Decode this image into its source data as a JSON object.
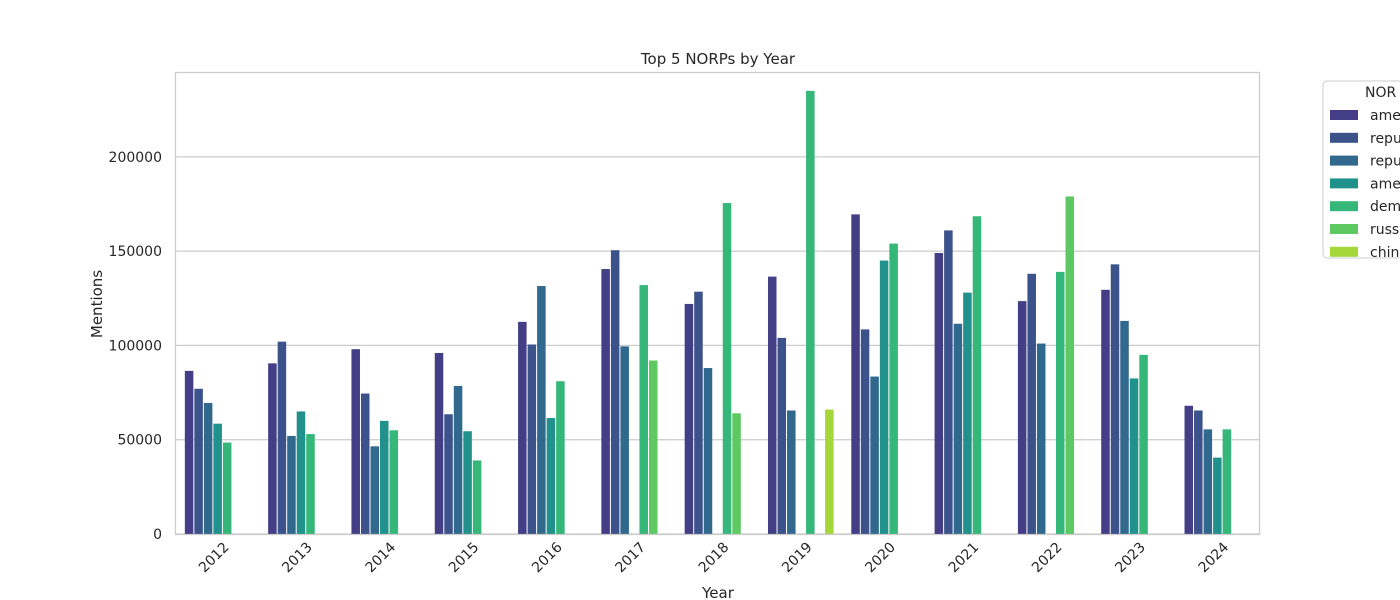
{
  "chart_data": {
    "type": "bar",
    "title": "Top 5 NORPs by Year",
    "xlabel": "Year",
    "ylabel": "Mentions",
    "ylim": [
      0,
      245000
    ],
    "yticks": [
      0,
      50000,
      100000,
      150000,
      200000
    ],
    "ytick_labels": [
      "0",
      "50000",
      "100000",
      "150000",
      "200000"
    ],
    "grid": "y",
    "legend": {
      "title": "NOR",
      "placement": "outside-right"
    },
    "categories": [
      "2012",
      "2013",
      "2014",
      "2015",
      "2016",
      "2017",
      "2018",
      "2019",
      "2020",
      "2021",
      "2022",
      "2023",
      "2024"
    ],
    "series": [
      {
        "name": "ame",
        "color": "#433e85",
        "values": [
          86500,
          90500,
          98000,
          96000,
          112500,
          140500,
          122000,
          136500,
          169500,
          149000,
          123500,
          129500,
          68000
        ]
      },
      {
        "name": "repu",
        "color": "#3b528b",
        "values": [
          77000,
          102000,
          74500,
          63500,
          100500,
          150500,
          128500,
          104000,
          108500,
          161000,
          138000,
          143000,
          65500
        ]
      },
      {
        "name": "repu",
        "color": "#31688e",
        "values": [
          69500,
          52000,
          46500,
          78500,
          131500,
          99500,
          88000,
          65500,
          83500,
          111500,
          101000,
          113000,
          55500
        ]
      },
      {
        "name": "ame",
        "color": "#21918c",
        "values": [
          58500,
          65000,
          60000,
          54500,
          61500,
          null,
          null,
          null,
          145000,
          128000,
          null,
          82500,
          40500
        ]
      },
      {
        "name": "dem",
        "color": "#35b779",
        "values": [
          48500,
          53000,
          55000,
          39000,
          81000,
          132000,
          175500,
          235000,
          154000,
          168500,
          139000,
          95000,
          55500
        ]
      },
      {
        "name": "russ",
        "color": "#5ec962",
        "values": [
          null,
          null,
          null,
          null,
          null,
          92000,
          64000,
          null,
          null,
          null,
          179000,
          null,
          null
        ]
      },
      {
        "name": "chine",
        "color": "#a5d63a",
        "values": [
          null,
          null,
          null,
          null,
          null,
          null,
          null,
          66000,
          null,
          null,
          null,
          null,
          null
        ]
      }
    ]
  }
}
